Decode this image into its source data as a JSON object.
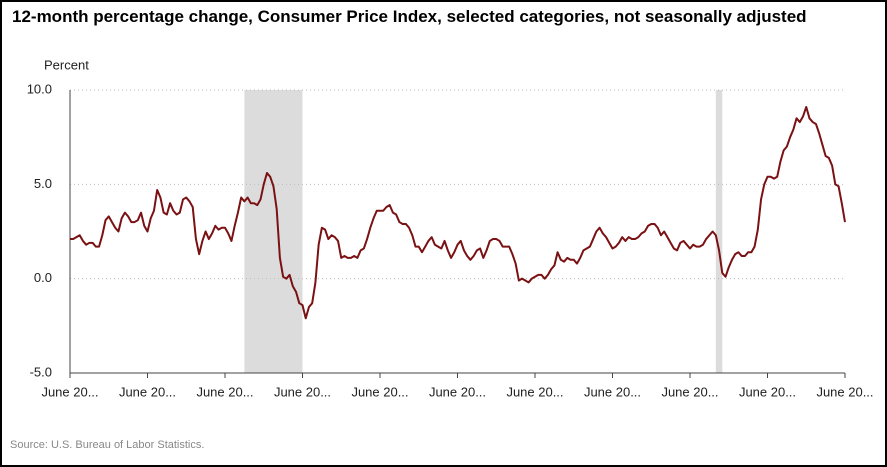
{
  "chart_data": {
    "type": "line",
    "title": "12-month percentage change, Consumer Price Index, selected categories, not seasonally adjusted",
    "y_label": "Percent",
    "source": "Source: U.S. Bureau of Labor Statistics.",
    "color": "#7a1113",
    "shade_color": "#dcdcdc",
    "grid": true,
    "ylim": [
      -5,
      10
    ],
    "yticks": [
      {
        "value": -5,
        "label": "-5.0"
      },
      {
        "value": 0,
        "label": "0.0"
      },
      {
        "value": 5,
        "label": "5.0"
      },
      {
        "value": 10,
        "label": "10.0"
      }
    ],
    "shaded_ranges": [
      [
        54,
        72
      ],
      [
        200,
        202
      ]
    ],
    "categories": [
      "June 20...",
      null,
      null,
      null,
      null,
      null,
      null,
      null,
      null,
      null,
      null,
      null,
      null,
      null,
      null,
      null,
      null,
      null,
      null,
      null,
      null,
      null,
      null,
      null,
      "June 20...",
      null,
      null,
      null,
      null,
      null,
      null,
      null,
      null,
      null,
      null,
      null,
      null,
      null,
      null,
      null,
      null,
      null,
      null,
      null,
      null,
      null,
      null,
      null,
      "June 20...",
      null,
      null,
      null,
      null,
      null,
      null,
      null,
      null,
      null,
      null,
      null,
      null,
      null,
      null,
      null,
      null,
      null,
      null,
      null,
      null,
      null,
      null,
      null,
      "June 20...",
      null,
      null,
      null,
      null,
      null,
      null,
      null,
      null,
      null,
      null,
      null,
      null,
      null,
      null,
      null,
      null,
      null,
      null,
      null,
      null,
      null,
      null,
      null,
      "June 20...",
      null,
      null,
      null,
      null,
      null,
      null,
      null,
      null,
      null,
      null,
      null,
      null,
      null,
      null,
      null,
      null,
      null,
      null,
      null,
      null,
      null,
      null,
      null,
      "June 20...",
      null,
      null,
      null,
      null,
      null,
      null,
      null,
      null,
      null,
      null,
      null,
      null,
      null,
      null,
      null,
      null,
      null,
      null,
      null,
      null,
      null,
      null,
      null,
      "June 20...",
      null,
      null,
      null,
      null,
      null,
      null,
      null,
      null,
      null,
      null,
      null,
      null,
      null,
      null,
      null,
      null,
      null,
      null,
      null,
      null,
      null,
      null,
      null,
      "June 20...",
      null,
      null,
      null,
      null,
      null,
      null,
      null,
      null,
      null,
      null,
      null,
      null,
      null,
      null,
      null,
      null,
      null,
      null,
      null,
      null,
      null,
      null,
      null,
      "June 20...",
      null,
      null,
      null,
      null,
      null,
      null,
      null,
      null,
      null,
      null,
      null,
      null,
      null,
      null,
      null,
      null,
      null,
      null,
      null,
      null,
      null,
      null,
      null,
      "June 20...",
      null,
      null,
      null,
      null,
      null,
      null,
      null,
      null,
      null,
      null,
      null,
      null,
      null,
      null,
      null,
      null,
      null,
      null,
      null,
      null,
      null,
      null,
      null,
      "June 20..."
    ],
    "values": [
      2.1,
      2.1,
      2.2,
      2.3,
      2.0,
      1.8,
      1.9,
      1.9,
      1.7,
      1.7,
      2.3,
      3.1,
      3.3,
      3.0,
      2.7,
      2.5,
      3.2,
      3.5,
      3.3,
      3.0,
      3.0,
      3.1,
      3.5,
      2.8,
      2.5,
      3.2,
      3.6,
      4.7,
      4.3,
      3.5,
      3.4,
      4.0,
      3.6,
      3.4,
      3.5,
      4.2,
      4.3,
      4.1,
      3.8,
      2.1,
      1.3,
      2.0,
      2.5,
      2.1,
      2.4,
      2.8,
      2.6,
      2.7,
      2.7,
      2.4,
      2.0,
      2.8,
      3.5,
      4.3,
      4.1,
      4.3,
      4.0,
      4.0,
      3.9,
      4.2,
      5.0,
      5.6,
      5.4,
      4.9,
      3.7,
      1.1,
      0.1,
      0.0,
      0.2,
      -0.4,
      -0.7,
      -1.3,
      -1.4,
      -2.1,
      -1.5,
      -1.3,
      -0.2,
      1.8,
      2.7,
      2.6,
      2.1,
      2.3,
      2.2,
      2.0,
      1.1,
      1.2,
      1.1,
      1.1,
      1.2,
      1.1,
      1.5,
      1.6,
      2.1,
      2.7,
      3.2,
      3.6,
      3.6,
      3.6,
      3.8,
      3.9,
      3.5,
      3.4,
      3.0,
      2.9,
      2.9,
      2.7,
      2.3,
      1.7,
      1.7,
      1.4,
      1.7,
      2.0,
      2.2,
      1.8,
      1.7,
      1.6,
      2.0,
      1.5,
      1.1,
      1.4,
      1.8,
      2.0,
      1.5,
      1.2,
      1.0,
      1.2,
      1.5,
      1.6,
      1.1,
      1.5,
      2.0,
      2.1,
      2.1,
      2.0,
      1.7,
      1.7,
      1.7,
      1.3,
      0.8,
      -0.1,
      0.0,
      -0.1,
      -0.2,
      0.0,
      0.1,
      0.2,
      0.2,
      0.0,
      0.2,
      0.5,
      0.7,
      1.4,
      1.0,
      0.9,
      1.1,
      1.0,
      1.0,
      0.8,
      1.1,
      1.5,
      1.6,
      1.7,
      2.1,
      2.5,
      2.7,
      2.4,
      2.2,
      1.9,
      1.6,
      1.7,
      1.9,
      2.2,
      2.0,
      2.2,
      2.1,
      2.1,
      2.2,
      2.4,
      2.5,
      2.8,
      2.9,
      2.9,
      2.7,
      2.3,
      2.5,
      2.2,
      1.9,
      1.6,
      1.5,
      1.9,
      2.0,
      1.8,
      1.6,
      1.8,
      1.7,
      1.7,
      1.8,
      2.1,
      2.3,
      2.5,
      2.3,
      1.5,
      0.3,
      0.1,
      0.6,
      1.0,
      1.3,
      1.4,
      1.2,
      1.2,
      1.4,
      1.4,
      1.7,
      2.6,
      4.2,
      5.0,
      5.4,
      5.4,
      5.3,
      5.4,
      6.2,
      6.8,
      7.0,
      7.5,
      7.9,
      8.5,
      8.3,
      8.6,
      9.1,
      8.5,
      8.3,
      8.2,
      7.7,
      7.1,
      6.5,
      6.4,
      6.0,
      5.0,
      4.9,
      4.0,
      3.0
    ]
  }
}
